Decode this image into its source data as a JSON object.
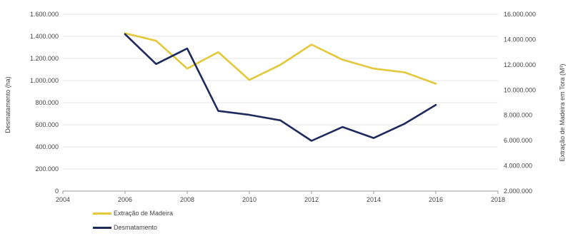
{
  "chart_data": {
    "type": "line",
    "x_ticks": [
      "2004",
      "2006",
      "2008",
      "2010",
      "2012",
      "2014",
      "2016",
      "2018"
    ],
    "xlim": [
      2004,
      2018
    ],
    "y_left_label": "Desmatamento (ha)",
    "y_left_ticks": [
      "0",
      "200.000",
      "400.000",
      "600.000",
      "800.000",
      "1.000.000",
      "1.200.000",
      "1.400.000",
      "1.600.000"
    ],
    "y_left_lim": [
      0,
      1600000
    ],
    "y_right_label": "Extração de Madeira em Tora (M³)",
    "y_right_ticks": [
      "2.000.000",
      "4.000.000",
      "6.000.000",
      "8.000.000",
      "10.000.000",
      "12.000.000",
      "14.000.000",
      "16.000.000"
    ],
    "y_right_lim": [
      2000000,
      16000000
    ],
    "grid": true,
    "legend_position": "bottom-left",
    "series": [
      {
        "name": "Extração de Madeira",
        "axis": "right",
        "color": "#E3C83C",
        "x": [
          2006,
          2007,
          2008,
          2009,
          2010,
          2011,
          2012,
          2013,
          2014,
          2015,
          2016
        ],
        "values": [
          14500000,
          13900000,
          11700000,
          13000000,
          10800000,
          12000000,
          13600000,
          12400000,
          11700000,
          11400000,
          10500000
        ]
      },
      {
        "name": "Desmatamento",
        "axis": "left",
        "color": "#1F2A5C",
        "x": [
          2006,
          2007,
          2008,
          2009,
          2010,
          2011,
          2012,
          2013,
          2014,
          2015,
          2016
        ],
        "values": [
          1420000,
          1150000,
          1290000,
          725000,
          690000,
          640000,
          455000,
          580000,
          480000,
          610000,
          780000
        ]
      }
    ]
  }
}
